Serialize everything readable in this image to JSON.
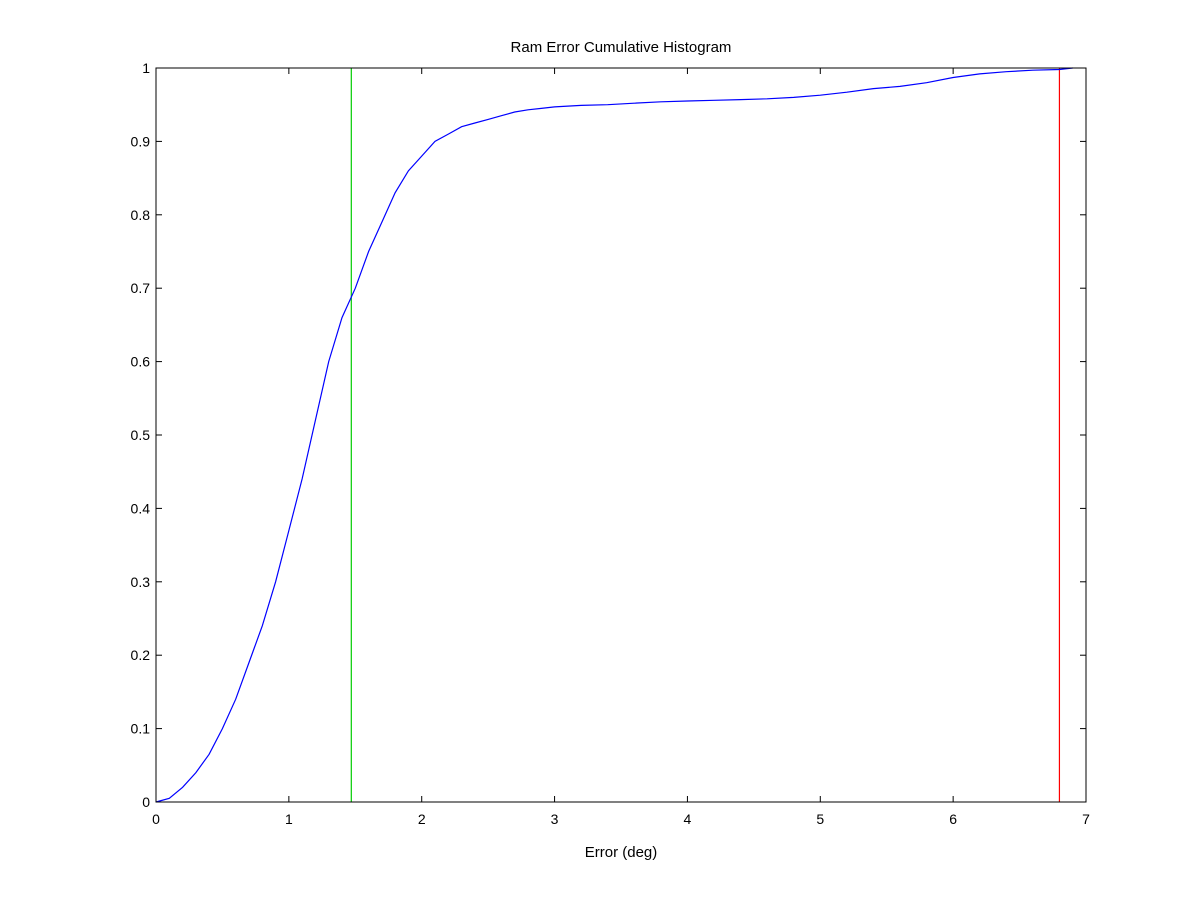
{
  "chart_data": {
    "type": "line",
    "title": "Ram Error Cumulative Histogram",
    "xlabel": "Error (deg)",
    "ylabel": "",
    "xlim": [
      0,
      7
    ],
    "ylim": [
      0,
      1
    ],
    "x_ticks": [
      0,
      1,
      2,
      3,
      4,
      5,
      6,
      7
    ],
    "y_ticks": [
      0,
      0.1,
      0.2,
      0.3,
      0.4,
      0.5,
      0.6,
      0.7,
      0.8,
      0.9,
      1
    ],
    "x_tick_labels": [
      "0",
      "1",
      "2",
      "3",
      "4",
      "5",
      "6",
      "7"
    ],
    "y_tick_labels": [
      "0",
      "0.1",
      "0.2",
      "0.3",
      "0.4",
      "0.5",
      "0.6",
      "0.7",
      "0.8",
      "0.9",
      "1"
    ],
    "grid": false,
    "series": [
      {
        "color": "#0000ff",
        "x": [
          0,
          0.1,
          0.2,
          0.3,
          0.4,
          0.5,
          0.6,
          0.7,
          0.8,
          0.9,
          1.0,
          1.1,
          1.2,
          1.3,
          1.4,
          1.5,
          1.6,
          1.7,
          1.8,
          1.9,
          2.0,
          2.1,
          2.2,
          2.3,
          2.4,
          2.5,
          2.6,
          2.7,
          2.8,
          2.9,
          3.0,
          3.2,
          3.4,
          3.6,
          3.8,
          4.0,
          4.2,
          4.4,
          4.6,
          4.8,
          5.0,
          5.2,
          5.4,
          5.6,
          5.8,
          6.0,
          6.2,
          6.4,
          6.6,
          6.8,
          6.9
        ],
        "y": [
          0.0,
          0.005,
          0.02,
          0.04,
          0.065,
          0.1,
          0.14,
          0.19,
          0.24,
          0.3,
          0.37,
          0.44,
          0.52,
          0.6,
          0.66,
          0.7,
          0.75,
          0.79,
          0.83,
          0.86,
          0.88,
          0.9,
          0.91,
          0.92,
          0.925,
          0.93,
          0.935,
          0.94,
          0.943,
          0.945,
          0.947,
          0.949,
          0.95,
          0.952,
          0.954,
          0.955,
          0.956,
          0.957,
          0.958,
          0.96,
          0.963,
          0.967,
          0.972,
          0.975,
          0.98,
          0.987,
          0.992,
          0.995,
          0.997,
          0.998,
          1.0
        ]
      }
    ],
    "vlines": [
      {
        "x": 1.47,
        "color": "#00cc00"
      },
      {
        "x": 6.8,
        "color": "#ff0000"
      }
    ]
  }
}
